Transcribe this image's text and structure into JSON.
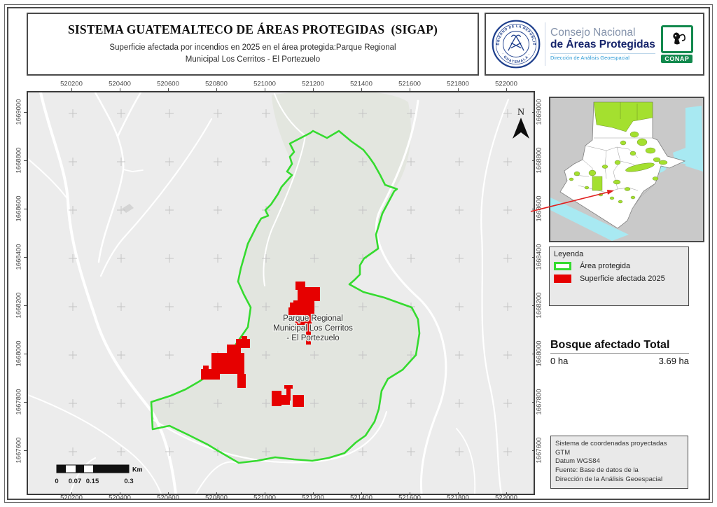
{
  "header": {
    "title": "SISTEMA GUATEMALTECO DE ÁREAS PROTEGIDAS  (SIGAP)",
    "subtitle": "Superficie afectada por incendios en 2025 en el área protegida:Parque Regional Municipal Los Cerritos - El Portezuelo"
  },
  "logos": {
    "seal_text_top": "GOBIERNO DE LA REPÚBLICA",
    "seal_text_bottom": "· GUATEMALA ·",
    "org_line1": "Consejo Nacional",
    "org_line2": "de Áreas Protegidas",
    "org_line3": "Dirección de Análisis Geoespacial",
    "conap_label": "CONAP"
  },
  "map": {
    "x_ticks": [
      "520200",
      "520400",
      "520600",
      "520800",
      "521000",
      "521200",
      "521400",
      "521600",
      "521800",
      "522000"
    ],
    "y_ticks": [
      "1669000",
      "1668800",
      "1668600",
      "1668400",
      "1668200",
      "1668000",
      "1667800",
      "1667600"
    ],
    "north_label": "N",
    "park_label": [
      "Parque Regional",
      "Municipal Los Cerritos",
      "- El Portezuelo"
    ]
  },
  "scalebar": {
    "labels": [
      "0",
      "0.07",
      "0.15",
      "0.3"
    ],
    "unit": "Km"
  },
  "legend": {
    "title": "Leyenda",
    "items": [
      {
        "label": "Área protegida",
        "type": "outline",
        "color": "#35db2f"
      },
      {
        "label": "Superficie afectada 2025",
        "type": "fill",
        "color": "#e60000"
      }
    ]
  },
  "stats": {
    "title": "Bosque afectado Total",
    "left_value": "0 ha",
    "right_value": "3.69 ha"
  },
  "credits": {
    "lines": [
      "Sistema de coordenadas proyectadas",
      "GTM",
      "Datum WGS84",
      "Fuente: Base de datos de la",
      "Dirección de la Análisis Geoespacial"
    ]
  },
  "colors": {
    "protected_outline": "#35db2f",
    "affected_fill": "#e60000",
    "inset_protected": "#a4e02f",
    "water": "#a8e9f2"
  }
}
